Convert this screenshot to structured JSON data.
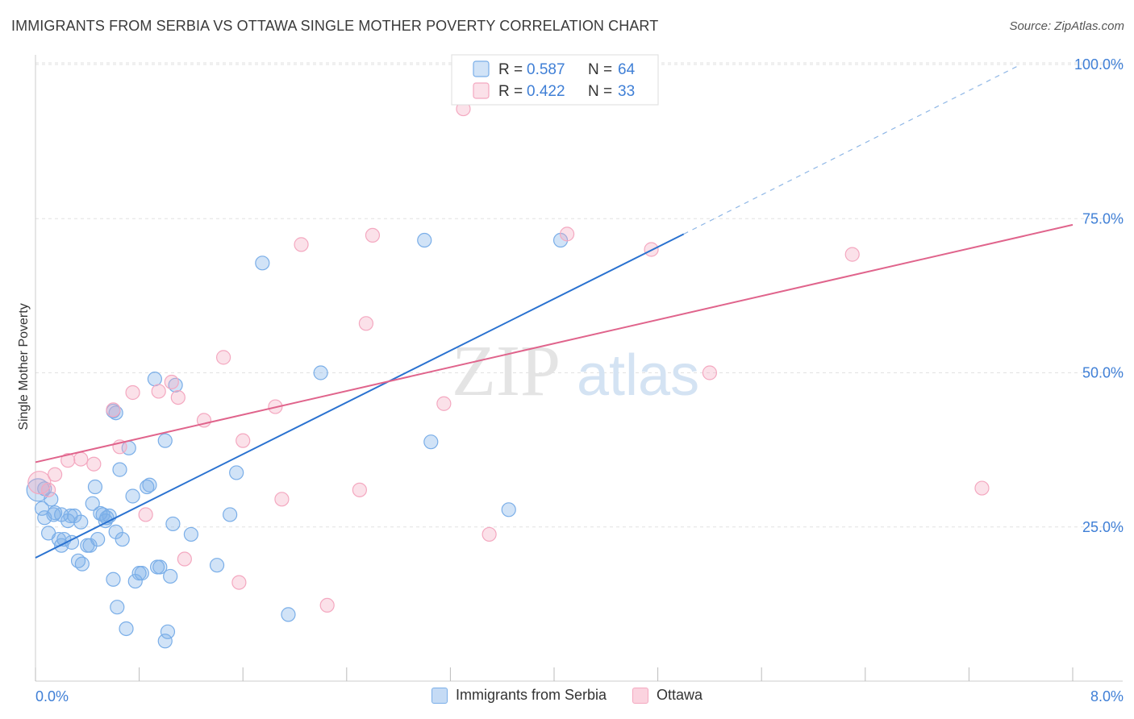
{
  "header": {
    "title": "IMMIGRANTS FROM SERBIA VS OTTAWA SINGLE MOTHER POVERTY CORRELATION CHART",
    "source": "Source: ZipAtlas.com"
  },
  "watermark": {
    "left": "ZIP",
    "right": "atlas"
  },
  "chart_data": {
    "type": "scatter",
    "title": "IMMIGRANTS FROM SERBIA VS OTTAWA SINGLE MOTHER POVERTY CORRELATION CHART",
    "xlabel": "",
    "ylabel": "Single Mother Poverty",
    "xlim": [
      0,
      8
    ],
    "ylim": [
      0,
      100
    ],
    "x_tick_labels": [
      "0.0%",
      "8.0%"
    ],
    "y_tick_labels": [
      "25.0%",
      "50.0%",
      "75.0%",
      "100.0%"
    ],
    "y_ticks": [
      25,
      50,
      75,
      100
    ],
    "grid": true,
    "legend_placement": "top-center and bottom",
    "series": [
      {
        "name": "Immigrants from Serbia",
        "color": "#7aaee8",
        "line_color": "#2a72d0",
        "stats": {
          "r_label": "R =",
          "r": "0.587",
          "n_label": "N =",
          "n": "64"
        },
        "trend": {
          "x0": 0,
          "y0": 20,
          "x1": 5.0,
          "y1": 72.5,
          "dash_x1": 7.6,
          "dash_y1": 100
        },
        "points": [
          [
            0.02,
            31.0
          ],
          [
            0.05,
            28.0
          ],
          [
            0.07,
            26.5
          ],
          [
            0.1,
            24.0
          ],
          [
            0.12,
            29.5
          ],
          [
            0.14,
            27.0
          ],
          [
            0.15,
            27.3
          ],
          [
            0.18,
            23.0
          ],
          [
            0.2,
            22.0
          ],
          [
            0.22,
            23.0
          ],
          [
            0.25,
            26.0
          ],
          [
            0.27,
            26.8
          ],
          [
            0.28,
            22.5
          ],
          [
            0.3,
            26.8
          ],
          [
            0.33,
            19.5
          ],
          [
            0.36,
            19.0
          ],
          [
            0.4,
            22.0
          ],
          [
            0.42,
            22.0
          ],
          [
            0.44,
            28.8
          ],
          [
            0.46,
            31.5
          ],
          [
            0.48,
            23.0
          ],
          [
            0.5,
            27.2
          ],
          [
            0.52,
            27.0
          ],
          [
            0.54,
            26.0
          ],
          [
            0.57,
            26.8
          ],
          [
            0.6,
            16.5
          ],
          [
            0.62,
            24.2
          ],
          [
            0.63,
            12.0
          ],
          [
            0.65,
            34.3
          ],
          [
            0.67,
            23.0
          ],
          [
            0.7,
            8.5
          ],
          [
            0.72,
            37.8
          ],
          [
            0.75,
            30.0
          ],
          [
            0.77,
            16.2
          ],
          [
            0.8,
            17.5
          ],
          [
            0.82,
            17.5
          ],
          [
            0.86,
            31.5
          ],
          [
            0.88,
            31.8
          ],
          [
            0.92,
            49.0
          ],
          [
            0.94,
            18.5
          ],
          [
            0.96,
            18.5
          ],
          [
            1.0,
            6.5
          ],
          [
            1.02,
            8.0
          ],
          [
            1.04,
            17.0
          ],
          [
            1.06,
            25.5
          ],
          [
            1.08,
            48.0
          ],
          [
            1.2,
            23.8
          ],
          [
            1.5,
            27.0
          ],
          [
            1.4,
            18.8
          ],
          [
            1.55,
            33.8
          ],
          [
            1.75,
            67.8
          ],
          [
            1.95,
            10.8
          ],
          [
            2.2,
            50.0
          ],
          [
            3.0,
            71.5
          ],
          [
            3.05,
            38.8
          ],
          [
            3.65,
            27.8
          ],
          [
            4.05,
            71.5
          ],
          [
            0.6,
            43.8
          ],
          [
            0.62,
            43.5
          ],
          [
            0.07,
            31.2
          ],
          [
            1.0,
            39.0
          ],
          [
            0.55,
            26.5
          ],
          [
            0.2,
            27.0
          ],
          [
            0.35,
            25.8
          ]
        ]
      },
      {
        "name": "Ottawa",
        "color": "#f4a8c0",
        "line_color": "#e0648c",
        "stats": {
          "r_label": "R =",
          "r": "0.422",
          "n_label": "N =",
          "n": "33"
        },
        "trend": {
          "x0": 0,
          "y0": 35.5,
          "x1": 8.0,
          "y1": 74.0
        },
        "points": [
          [
            0.03,
            32.2
          ],
          [
            0.15,
            33.5
          ],
          [
            0.25,
            35.8
          ],
          [
            0.35,
            36.0
          ],
          [
            0.45,
            35.2
          ],
          [
            0.6,
            44.0
          ],
          [
            0.65,
            38.0
          ],
          [
            0.75,
            46.8
          ],
          [
            0.85,
            27.0
          ],
          [
            0.95,
            47.0
          ],
          [
            1.05,
            48.5
          ],
          [
            1.1,
            46.0
          ],
          [
            1.15,
            19.8
          ],
          [
            1.3,
            42.3
          ],
          [
            1.45,
            52.5
          ],
          [
            1.57,
            16.0
          ],
          [
            1.6,
            39.0
          ],
          [
            1.85,
            44.5
          ],
          [
            1.9,
            29.5
          ],
          [
            2.05,
            70.8
          ],
          [
            2.25,
            12.3
          ],
          [
            2.5,
            31.0
          ],
          [
            2.55,
            58.0
          ],
          [
            2.6,
            72.3
          ],
          [
            3.15,
            45.0
          ],
          [
            3.3,
            92.8
          ],
          [
            3.5,
            23.8
          ],
          [
            4.1,
            72.5
          ],
          [
            4.75,
            70.0
          ],
          [
            5.2,
            50.0
          ],
          [
            6.3,
            69.2
          ],
          [
            7.3,
            31.3
          ],
          [
            0.1,
            31.0
          ]
        ]
      }
    ]
  }
}
